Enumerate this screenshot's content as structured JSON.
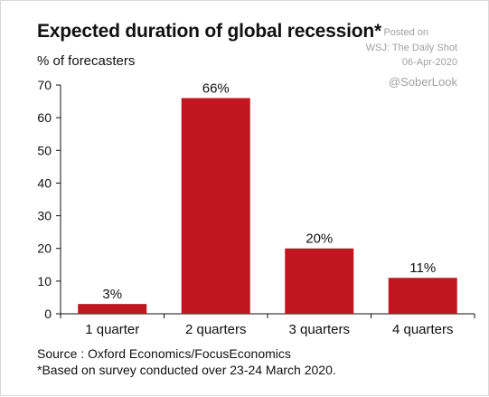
{
  "chart_data": {
    "type": "bar",
    "title": "Expected duration of global recession",
    "title_marker": "*",
    "ylabel": "% of forecasters",
    "xlabel": "",
    "categories": [
      "1 quarter",
      "2 quarters",
      "3 quarters",
      "4 quarters"
    ],
    "values": [
      3,
      66,
      20,
      11
    ],
    "data_labels": [
      "3%",
      "66%",
      "20%",
      "11%"
    ],
    "ylim": [
      0,
      70
    ],
    "yticks": [
      "0",
      "10",
      "20",
      "30",
      "40",
      "50",
      "60",
      "70"
    ],
    "ytick_values": [
      0,
      10,
      20,
      30,
      40,
      50,
      60,
      70
    ],
    "grid": false,
    "bar_color": "#c0161f",
    "source": "Source : Oxford Economics/FocusEconomics",
    "footnote": "*Based on survey conducted over 23-24 March 2020."
  },
  "watermark": {
    "line1": "Posted on",
    "line2": "WSJ: The Daily Shot",
    "line3": "06-Apr-2020",
    "handle": "@SoberLook"
  }
}
